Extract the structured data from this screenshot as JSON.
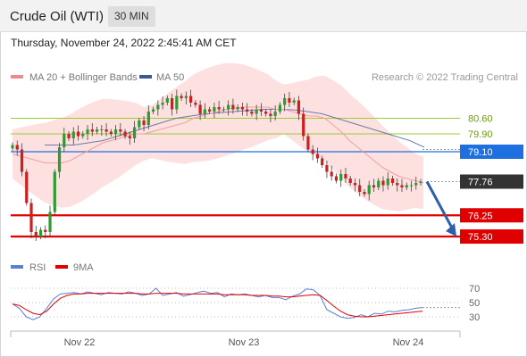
{
  "header": {
    "title": "Crude Oil (WTI)",
    "timeframe": "30 MIN",
    "timestamp": "Thursday, November 24, 2022 2:45:41 AM CET"
  },
  "legend": {
    "ma20_label": "MA 20 + Bollinger Bands",
    "ma50_label": "MA 50",
    "ma20_color": "#f08a8a",
    "ma50_color": "#3b5998",
    "copyright": "Research © 2022 Trading Central"
  },
  "rsi_legend": {
    "rsi_label": "RSI",
    "ma9_label": "9MA",
    "rsi_color": "#5b7fd6",
    "ma9_color": "#e00000"
  },
  "chart_data": [
    {
      "type": "candlestick",
      "title": "Crude Oil (WTI)",
      "x_tick_labels": [
        "Nov 22",
        "Nov 23",
        "Nov 24"
      ],
      "price_scale": {
        "ylim": [
          74.9,
          81.9
        ]
      },
      "levels": [
        {
          "price": 80.6,
          "label": "80.60",
          "color": "#9acd32",
          "kind": "resistance-green"
        },
        {
          "price": 79.9,
          "label": "79.90",
          "color": "#9acd32",
          "kind": "resistance-green"
        },
        {
          "price": 79.1,
          "label": "79.10",
          "color": "#1e6fe0",
          "kind": "pivot"
        },
        {
          "price": 77.76,
          "label": "77.76",
          "color": "#333333",
          "kind": "last"
        },
        {
          "price": 76.25,
          "label": "76.25",
          "color": "#e00000",
          "kind": "support"
        },
        {
          "price": 75.3,
          "label": "75.30",
          "color": "#e00000",
          "kind": "support"
        }
      ],
      "close_series": [
        79.4,
        79.2,
        78.2,
        76.8,
        75.5,
        75.3,
        75.6,
        75.5,
        76.4,
        78.2,
        79.3,
        79.9,
        79.7,
        80.0,
        79.8,
        79.9,
        80.1,
        80.0,
        80.1,
        80.1,
        80.0,
        79.9,
        80.1,
        80.0,
        79.8,
        79.7,
        80.2,
        80.5,
        80.3,
        80.9,
        81.0,
        81.2,
        81.3,
        81.5,
        81.0,
        81.6,
        81.5,
        81.6,
        81.3,
        81.2,
        80.8,
        81.0,
        80.9,
        81.1,
        81.0,
        81.0,
        81.2,
        81.0,
        81.1,
        81.0,
        80.9,
        80.8,
        81.0,
        80.9,
        80.8,
        80.7,
        80.9,
        81.2,
        81.5,
        81.3,
        81.4,
        80.8,
        79.8,
        79.2,
        79.0,
        78.8,
        78.5,
        78.2,
        78.0,
        77.8,
        78.1,
        77.9,
        77.7,
        77.6,
        77.3,
        77.2,
        77.6,
        77.5,
        77.8,
        77.6,
        77.9,
        77.7,
        77.6,
        77.5,
        77.6,
        77.6,
        77.7,
        77.76
      ],
      "ma20_series": [
        79.0,
        78.9,
        78.8,
        78.7,
        78.6,
        78.6,
        78.6,
        78.7,
        78.9,
        79.1,
        79.3,
        79.5,
        79.6,
        79.7,
        79.8,
        79.9,
        79.9,
        80.0,
        80.1,
        80.2,
        80.3,
        80.4,
        80.6,
        80.7,
        80.8,
        80.9,
        81.0,
        81.05,
        81.1,
        81.1,
        81.1,
        81.1,
        81.0,
        81.0,
        80.9,
        80.8,
        80.7,
        80.7,
        80.6,
        80.3,
        80.0,
        79.6,
        79.3,
        79.0,
        78.7,
        78.4,
        78.2,
        78.0,
        77.9,
        77.8,
        77.7
      ],
      "ma50_series": [
        79.4,
        79.4,
        79.4,
        79.5,
        79.6,
        79.8,
        80.0,
        80.2,
        80.4,
        80.6,
        80.7,
        80.8,
        80.85,
        80.9,
        80.95,
        81.0,
        81.0,
        80.98,
        80.9,
        80.8,
        80.6,
        80.4,
        80.2,
        80.0,
        79.8,
        79.6,
        79.3
      ],
      "projection": {
        "from": 77.76,
        "to": 75.3,
        "color": "#2f5fa8"
      }
    },
    {
      "type": "line",
      "title": "",
      "y_tick_labels": [
        "70",
        "50",
        "30"
      ],
      "ylim": [
        20,
        80
      ],
      "series": [
        {
          "name": "RSI",
          "color": "#5b7fd6",
          "values": [
            48,
            42,
            30,
            26,
            30,
            42,
            55,
            62,
            63,
            64,
            62,
            65,
            63,
            61,
            64,
            63,
            62,
            65,
            63,
            60,
            62,
            70,
            60,
            62,
            64,
            59,
            61,
            64,
            66,
            63,
            64,
            58,
            62,
            61,
            62,
            60,
            58,
            60,
            57,
            57,
            54,
            59,
            62,
            69,
            68,
            60,
            40,
            35,
            30,
            28,
            29,
            33,
            30,
            35,
            34,
            38,
            37,
            39,
            40,
            42,
            43
          ]
        },
        {
          "name": "9MA",
          "color": "#e00000",
          "values": [
            48,
            46,
            40,
            35,
            33,
            38,
            48,
            56,
            60,
            62,
            62,
            63,
            63,
            63,
            63,
            63,
            63,
            63,
            63,
            62,
            62,
            63,
            63,
            63,
            63,
            62,
            62,
            62,
            62,
            62,
            62,
            61,
            61,
            61,
            61,
            60,
            60,
            60,
            59,
            59,
            58,
            58,
            59,
            60,
            61,
            60,
            53,
            45,
            38,
            33,
            31,
            30,
            30,
            31,
            32,
            33,
            34,
            35,
            36,
            37,
            38
          ]
        }
      ]
    }
  ]
}
